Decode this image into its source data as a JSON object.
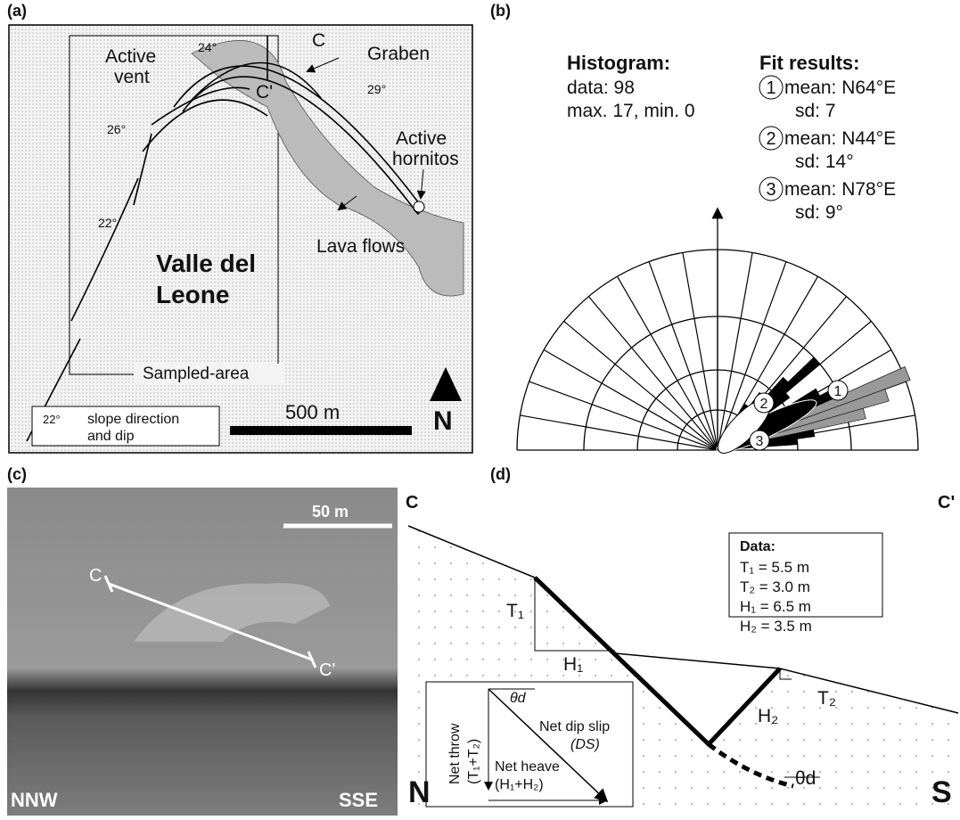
{
  "panel_a": {
    "label": "(a)",
    "section_start": "C",
    "section_end": "C'",
    "graben": "Graben",
    "active_vent": [
      "Active",
      "vent"
    ],
    "dip_1": "24°",
    "dip_2": "29°",
    "dip_3": "26°",
    "dip_4": "22°",
    "active_hornitos": [
      "Active",
      "hornitos"
    ],
    "lava_flows": "Lava flows",
    "place_name": [
      "Valle del",
      "Leone"
    ],
    "sampled_area": "Sampled-area",
    "legend_dip": "22°",
    "legend_text": [
      "slope direction",
      "and dip"
    ],
    "scale": "500 m",
    "north": "N"
  },
  "panel_b": {
    "label": "(b)",
    "histogram_title": "Histogram:",
    "histogram_lines": [
      "data: 98",
      "max. 17, min. 0"
    ],
    "fit_title": "Fit results:",
    "fits": [
      {
        "id": "1",
        "mean": "mean: N64°E",
        "sd": "sd: 7"
      },
      {
        "id": "2",
        "mean": "mean: N44°E",
        "sd": "sd: 14°"
      },
      {
        "id": "3",
        "mean": "mean: N78°E",
        "sd": "sd: 9°"
      }
    ]
  },
  "panel_c": {
    "label": "(c)",
    "scale": "50 m",
    "section_start": "C",
    "section_end": "C'",
    "left_direction": "NNW",
    "right_direction": "SSE"
  },
  "panel_d": {
    "label": "(d)",
    "section_start": "C",
    "section_end": "C'",
    "data_title": "Data:",
    "data_lines": [
      "T₁ = 5.5 m",
      "T₂ = 3.0 m",
      "H₁ = 6.5 m",
      "H₂ = 3.5 m"
    ],
    "t1": "T₁",
    "h1": "H₁",
    "t2": "T₂",
    "h2": "H₂",
    "theta_main": "θd",
    "theta_inset": "θd",
    "net_throw": [
      "Net throw",
      "(T₁+T₂)"
    ],
    "net_dip_slip": [
      "Net dip slip",
      "(DS)"
    ],
    "net_heave": [
      "Net heave",
      "(H₁+H₂)"
    ],
    "north": "N",
    "south": "S"
  }
}
